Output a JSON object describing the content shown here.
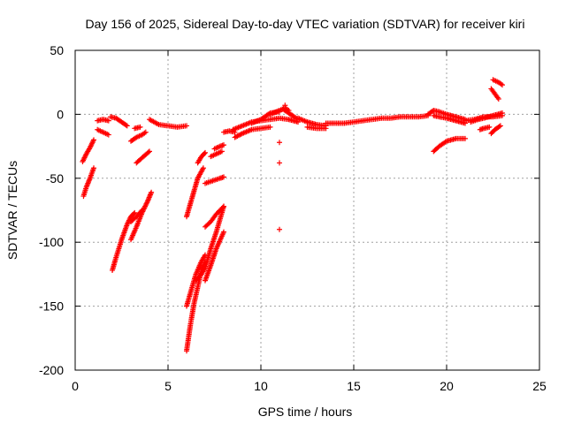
{
  "chart_data": {
    "type": "scatter",
    "title": "Day 156 of 2025, Sidereal Day-to-day VTEC variation (SDTVAR) for receiver kiri",
    "xlabel": "GPS time / hours",
    "ylabel": "SDTVAR / TECUs",
    "xlim": [
      0,
      25
    ],
    "ylim": [
      -200,
      50
    ],
    "xticks": [
      "0",
      "5",
      "10",
      "15",
      "20",
      "25"
    ],
    "yticks": [
      "50",
      "0",
      "-50",
      "-100",
      "-150",
      "-200"
    ],
    "grid": true,
    "marker": "plus",
    "color": "#ff0000",
    "segments": [
      [
        [
          0.4,
          -37
        ],
        [
          0.6,
          -31
        ],
        [
          0.8,
          -26
        ],
        [
          1.0,
          -20
        ]
      ],
      [
        [
          0.45,
          -64
        ],
        [
          0.6,
          -57
        ],
        [
          0.8,
          -50
        ],
        [
          1.0,
          -42
        ]
      ],
      [
        [
          1.2,
          -5
        ],
        [
          1.5,
          -4
        ],
        [
          1.8,
          -5
        ]
      ],
      [
        [
          1.2,
          -12
        ],
        [
          1.5,
          -14
        ],
        [
          1.8,
          -16
        ]
      ],
      [
        [
          2.0,
          -122
        ],
        [
          2.2,
          -112
        ],
        [
          2.5,
          -98
        ],
        [
          2.8,
          -86
        ],
        [
          3.0,
          -80
        ],
        [
          3.2,
          -77
        ]
      ],
      [
        [
          1.9,
          -2
        ],
        [
          2.2,
          -3
        ],
        [
          2.5,
          -6
        ],
        [
          2.8,
          -9
        ]
      ],
      [
        [
          3.0,
          -98
        ],
        [
          3.3,
          -88
        ],
        [
          3.6,
          -77
        ],
        [
          3.9,
          -68
        ],
        [
          4.1,
          -61
        ]
      ],
      [
        [
          3.0,
          -84
        ],
        [
          3.3,
          -80
        ],
        [
          3.6,
          -75
        ]
      ],
      [
        [
          3.0,
          -21
        ],
        [
          3.3,
          -18
        ],
        [
          3.6,
          -16
        ],
        [
          3.8,
          -14
        ]
      ],
      [
        [
          3.2,
          -11
        ],
        [
          3.5,
          -10
        ]
      ],
      [
        [
          3.3,
          -38
        ],
        [
          3.6,
          -34
        ],
        [
          4.0,
          -29
        ]
      ],
      [
        [
          4.0,
          -4
        ],
        [
          4.5,
          -8
        ],
        [
          5.0,
          -9
        ],
        [
          5.5,
          -10
        ],
        [
          6.0,
          -9
        ]
      ],
      [
        [
          6.0,
          -150
        ],
        [
          6.2,
          -140
        ],
        [
          6.5,
          -125
        ],
        [
          6.8,
          -115
        ],
        [
          7.0,
          -110
        ]
      ],
      [
        [
          6.0,
          -185
        ],
        [
          6.2,
          -165
        ],
        [
          6.4,
          -148
        ],
        [
          6.6,
          -135
        ],
        [
          6.8,
          -122
        ],
        [
          7.0,
          -115
        ]
      ],
      [
        [
          6.0,
          -80
        ],
        [
          6.2,
          -70
        ],
        [
          6.4,
          -60
        ],
        [
          6.6,
          -50
        ],
        [
          6.9,
          -42
        ]
      ],
      [
        [
          6.5,
          -130
        ],
        [
          6.8,
          -125
        ],
        [
          7.0,
          -120
        ],
        [
          7.3,
          -105
        ],
        [
          7.6,
          -92
        ],
        [
          8.0,
          -72
        ]
      ],
      [
        [
          7.0,
          -130
        ],
        [
          7.3,
          -118
        ],
        [
          7.6,
          -105
        ],
        [
          8.0,
          -92
        ]
      ],
      [
        [
          7.0,
          -88
        ],
        [
          7.3,
          -84
        ],
        [
          7.6,
          -78
        ],
        [
          8.0,
          -72
        ]
      ],
      [
        [
          6.6,
          -38
        ],
        [
          6.8,
          -33
        ],
        [
          7.0,
          -30
        ]
      ],
      [
        [
          7.0,
          -54
        ],
        [
          7.4,
          -52
        ],
        [
          7.8,
          -50
        ],
        [
          8.0,
          -49
        ]
      ],
      [
        [
          7.3,
          -33
        ],
        [
          7.6,
          -31
        ],
        [
          7.9,
          -29
        ]
      ],
      [
        [
          7.5,
          -27
        ],
        [
          7.8,
          -25
        ],
        [
          8.0,
          -24
        ]
      ],
      [
        [
          8.0,
          -14
        ],
        [
          8.3,
          -13
        ],
        [
          8.6,
          -14
        ]
      ],
      [
        [
          8.5,
          -12
        ],
        [
          9.0,
          -9
        ],
        [
          9.5,
          -6
        ],
        [
          10.0,
          -5
        ],
        [
          10.5,
          -4
        ],
        [
          11.0,
          -3
        ],
        [
          11.5,
          -4
        ],
        [
          12.0,
          -6
        ]
      ],
      [
        [
          8.6,
          -18
        ],
        [
          9.0,
          -15
        ],
        [
          9.5,
          -12
        ],
        [
          10.0,
          -11
        ],
        [
          10.5,
          -10
        ]
      ],
      [
        [
          9.5,
          -7
        ],
        [
          10.0,
          -4
        ],
        [
          10.5,
          1
        ],
        [
          11.0,
          2
        ]
      ],
      [
        [
          10.5,
          0
        ],
        [
          11.0,
          3
        ],
        [
          11.3,
          5
        ],
        [
          11.5,
          3
        ]
      ],
      [
        [
          11.2,
          4
        ],
        [
          11.5,
          1
        ],
        [
          11.8,
          -2
        ],
        [
          12.0,
          -4
        ]
      ],
      [
        [
          11.3,
          7
        ]
      ],
      [
        [
          11.0,
          -22
        ]
      ],
      [
        [
          11.0,
          -38
        ]
      ],
      [
        [
          11.0,
          -90
        ]
      ],
      [
        [
          12.0,
          -3
        ],
        [
          12.5,
          -6
        ],
        [
          13.0,
          -8
        ],
        [
          13.5,
          -9
        ]
      ],
      [
        [
          12.5,
          -10
        ],
        [
          13.0,
          -11
        ],
        [
          13.5,
          -11
        ]
      ],
      [
        [
          13.5,
          -7
        ],
        [
          14.0,
          -7
        ],
        [
          14.5,
          -7
        ],
        [
          15.0,
          -6
        ],
        [
          15.5,
          -5
        ],
        [
          16.0,
          -4
        ],
        [
          16.5,
          -3
        ],
        [
          17.0,
          -3
        ],
        [
          17.5,
          -2
        ],
        [
          18.0,
          -2
        ],
        [
          18.5,
          -2
        ],
        [
          19.0,
          -1
        ]
      ],
      [
        [
          19.0,
          0
        ],
        [
          19.3,
          3
        ],
        [
          19.6,
          2
        ],
        [
          20.0,
          0
        ],
        [
          20.5,
          -2
        ],
        [
          21.0,
          -4
        ]
      ],
      [
        [
          19.3,
          -1
        ],
        [
          19.6,
          -2
        ],
        [
          20.0,
          -3
        ],
        [
          20.5,
          -5
        ],
        [
          21.0,
          -7
        ]
      ],
      [
        [
          19.3,
          -29
        ],
        [
          19.6,
          -25
        ],
        [
          20.0,
          -21
        ],
        [
          20.5,
          -19
        ],
        [
          21.0,
          -19
        ]
      ],
      [
        [
          21.0,
          -5
        ],
        [
          21.5,
          -4
        ],
        [
          22.0,
          -2
        ],
        [
          22.5,
          -2
        ],
        [
          23.0,
          -1
        ]
      ],
      [
        [
          21.3,
          -6
        ],
        [
          21.7,
          -4
        ],
        [
          22.0,
          -3
        ],
        [
          22.5,
          -1
        ],
        [
          23.0,
          1
        ]
      ],
      [
        [
          21.8,
          -12
        ],
        [
          22.0,
          -11
        ],
        [
          22.3,
          -10
        ]
      ],
      [
        [
          22.4,
          -15
        ],
        [
          22.6,
          -12
        ],
        [
          22.9,
          -9
        ]
      ],
      [
        [
          22.4,
          20
        ],
        [
          22.6,
          16
        ],
        [
          22.8,
          12
        ]
      ],
      [
        [
          22.5,
          27
        ],
        [
          22.8,
          25
        ],
        [
          23.0,
          23
        ]
      ]
    ]
  }
}
